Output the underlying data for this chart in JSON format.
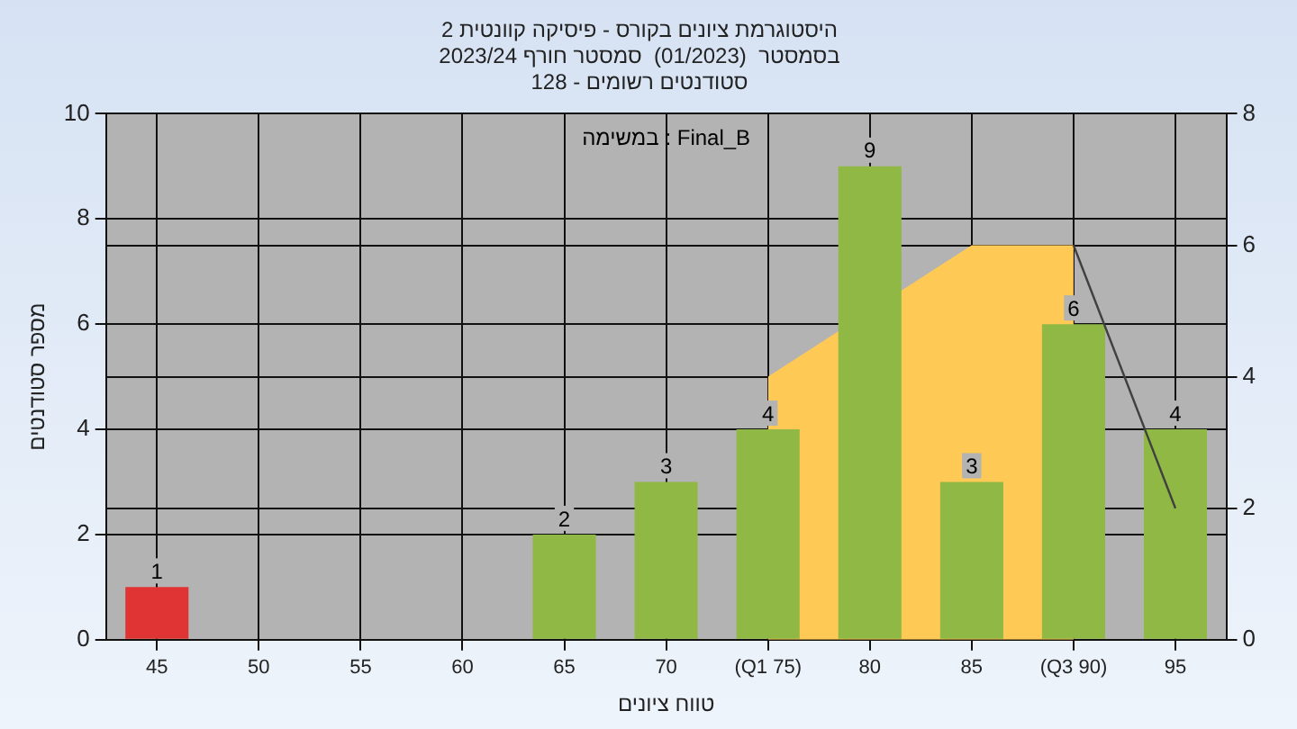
{
  "chart_data": {
    "type": "bar",
    "title": "היסטוגרמת ציונים בקורס - פיסיקה קוונטית 2",
    "subtitle": "בסמסטר  (01/2023)  סמסטר חורף 2023/24\nסטודנטים רשומים - 128",
    "xlabel": "טווח ציונים",
    "ylabel": "מספר סטודנטים",
    "annotations": [
      "במשימה : Final_B"
    ],
    "categories": [
      "45",
      "50",
      "55",
      "60",
      "65",
      "70",
      "(Q1 75)",
      "80",
      "85",
      "(Q3 90)",
      "95"
    ],
    "series": [
      {
        "values": [
          1,
          0,
          0,
          0,
          2,
          3,
          4,
          9,
          3,
          6,
          4
        ],
        "colors": [
          "#e03434",
          "#8fb845",
          "#8fb845",
          "#8fb845",
          "#8fb845",
          "#8fb845",
          "#8fb845",
          "#8fb845",
          "#8fb845",
          "#8fb845",
          "#8fb845"
        ],
        "value_labels": [
          "1",
          null,
          null,
          null,
          "2",
          "3",
          "4",
          "9",
          "3",
          "6",
          "4"
        ]
      },
      {
        "type": "area",
        "axis": "y2",
        "color": "#ffc955",
        "values": [
          null,
          null,
          null,
          null,
          null,
          null,
          4,
          null,
          6,
          6,
          null
        ]
      },
      {
        "type": "line",
        "axis": "y2",
        "color": "#404040",
        "values": [
          null,
          null,
          null,
          null,
          null,
          null,
          null,
          null,
          null,
          6,
          2
        ]
      }
    ],
    "ylim": [
      0,
      10
    ],
    "yticks": [
      0,
      2,
      4,
      6,
      8,
      10
    ],
    "y2lim": [
      0,
      8
    ],
    "y2ticks": [
      0,
      2,
      4,
      6,
      8
    ],
    "grid": true,
    "legend": false
  }
}
